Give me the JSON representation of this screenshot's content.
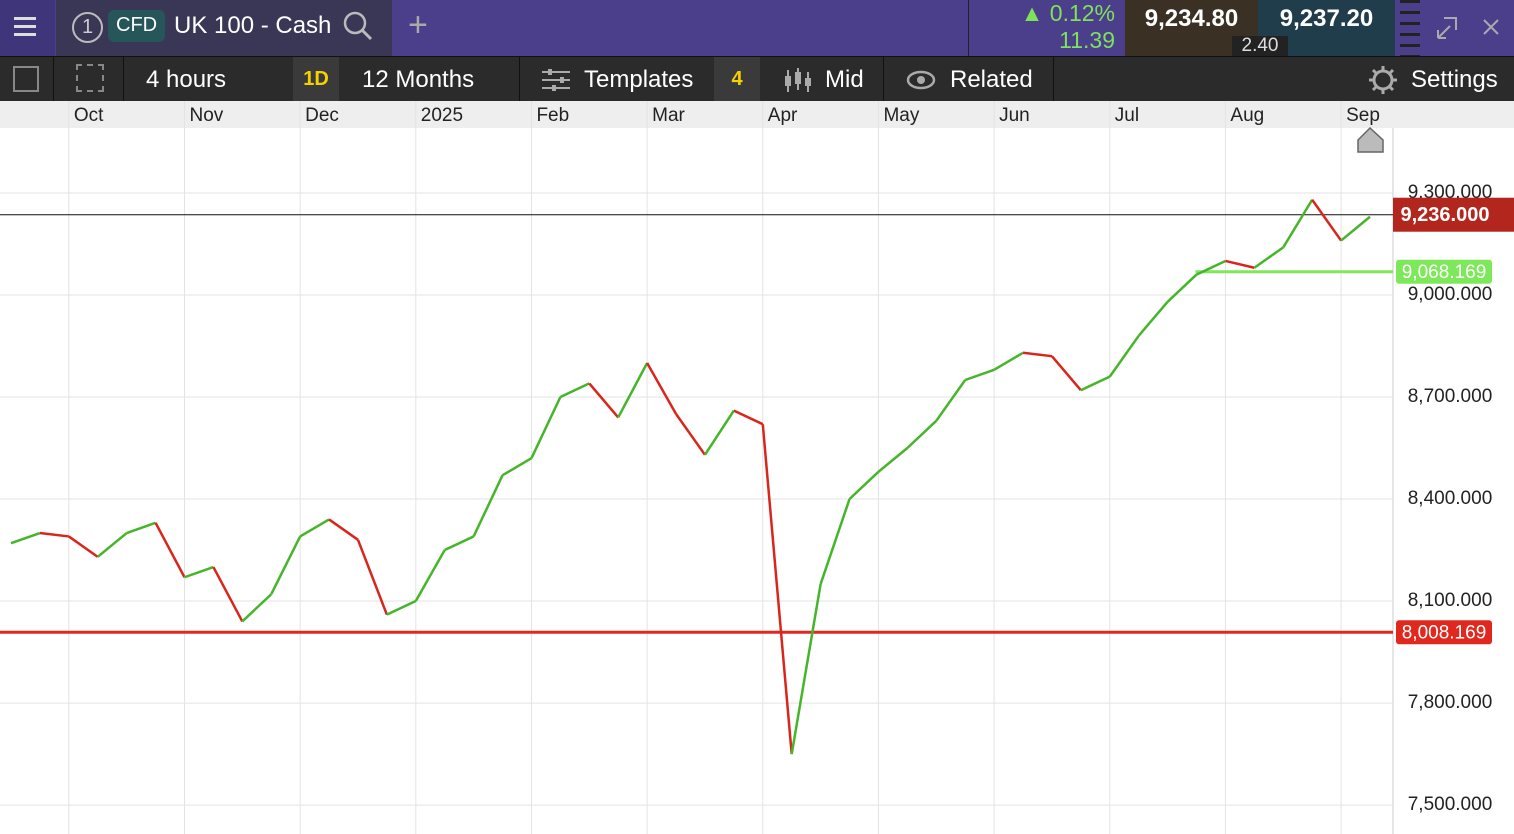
{
  "header": {
    "tab_number": "1",
    "instrument_type": "CFD",
    "instrument": "UK 100 - Cash",
    "change_pct": "0.12%",
    "change": "11.39",
    "bid": "9,234.80",
    "ask": "9,237.20",
    "spread": "2.40"
  },
  "toolbar": {
    "interval": "4 hours",
    "interval_short": "1D",
    "range": "12 Months",
    "templates": "Templates",
    "template_count": "4",
    "price_type": "Mid",
    "related": "Related",
    "settings": "Settings"
  },
  "chart_data": {
    "type": "line",
    "up_color": "#45b52a",
    "down_color": "#d9261c",
    "categories": [
      null,
      null,
      "Oct",
      null,
      null,
      null,
      "Nov",
      null,
      null,
      null,
      "Dec",
      null,
      null,
      null,
      "2025",
      null,
      null,
      null,
      "Feb",
      null,
      null,
      null,
      "Mar",
      null,
      null,
      null,
      "Apr",
      null,
      null,
      null,
      "May",
      null,
      null,
      null,
      "Jun",
      null,
      null,
      null,
      "Jul",
      null,
      null,
      null,
      "Aug",
      null,
      null,
      null,
      "Sep",
      null
    ],
    "values": [
      8270,
      8300,
      8290,
      8230,
      8300,
      8330,
      8170,
      8200,
      8040,
      8120,
      8290,
      8340,
      8280,
      8060,
      8100,
      8250,
      8290,
      8470,
      8520,
      8700,
      8740,
      8640,
      8800,
      8650,
      8530,
      8660,
      8620,
      7650,
      8150,
      8400,
      8480,
      8550,
      8630,
      8750,
      8780,
      8830,
      8820,
      8720,
      8760,
      8880,
      8980,
      9060,
      9100,
      9080,
      9140,
      9280,
      9160,
      9230
    ],
    "ylim": [
      7415,
      9491
    ],
    "yticks": [
      {
        "value": 7500,
        "label": "7,500.000"
      },
      {
        "value": 7800,
        "label": "7,800.000"
      },
      {
        "value": 8100,
        "label": "8,100.000"
      },
      {
        "value": 8400,
        "label": "8,400.000"
      },
      {
        "value": 8700,
        "label": "8,700.000"
      },
      {
        "value": 9000,
        "label": "9,000.000"
      },
      {
        "value": 9300,
        "label": "9,300.000"
      }
    ],
    "grid": true,
    "current_price": {
      "value": 9236,
      "label": "9,236.000",
      "color": "#b3261e"
    },
    "levels": [
      {
        "value": 9068.169,
        "label": "9,068.169",
        "color": "#7de85a",
        "start": "Aug"
      },
      {
        "value": 8008.169,
        "label": "8,008.169",
        "color": "#e0281e"
      }
    ]
  }
}
